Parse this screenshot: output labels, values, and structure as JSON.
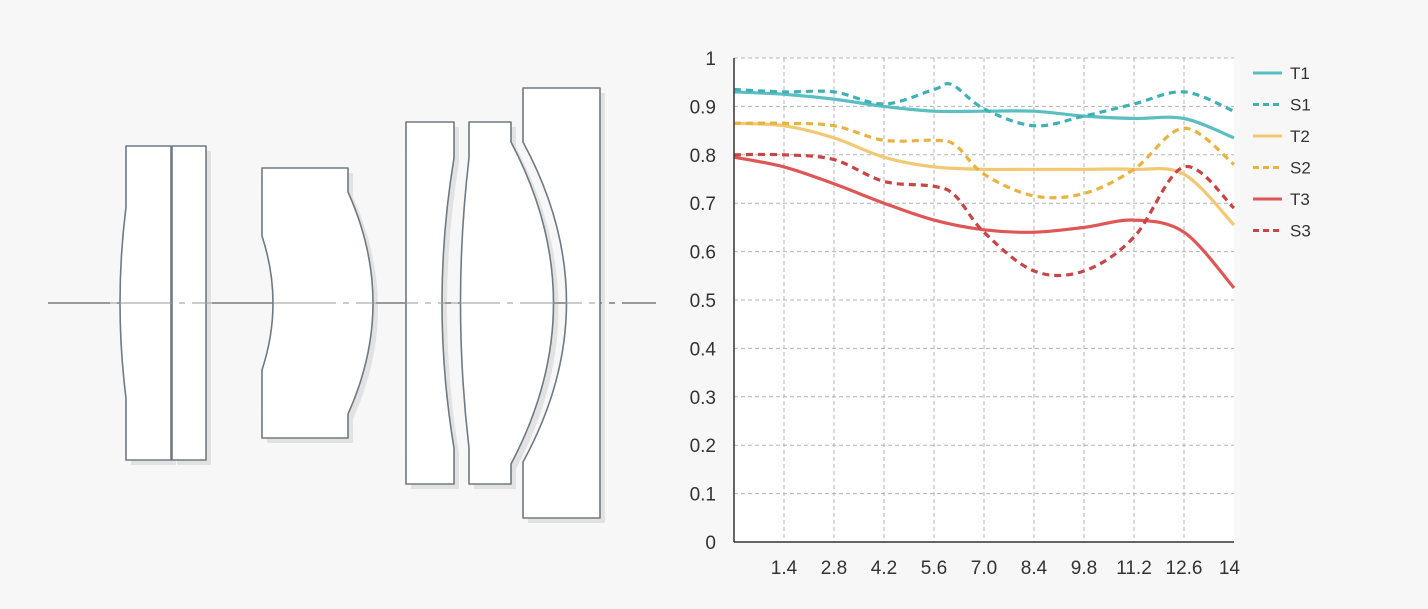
{
  "lens_diagram": {
    "elements": 7,
    "groups": 4
  },
  "chart_data": {
    "type": "line",
    "x_ticks": [
      "1.4",
      "2.8",
      "4.2",
      "5.6",
      "7.0",
      "8.4",
      "9.8",
      "11.2",
      "12.6",
      "14"
    ],
    "y_ticks": [
      "0",
      "0.1",
      "0.2",
      "0.3",
      "0.4",
      "0.5",
      "0.6",
      "0.7",
      "0.8",
      "0.9",
      "1"
    ],
    "xlim": [
      0,
      14
    ],
    "ylim": [
      0,
      1
    ],
    "grid": true,
    "legend_position": "right",
    "series": [
      {
        "name": "T1",
        "style": "solid",
        "color": "#5bbfc2",
        "x": [
          0,
          1.4,
          2.8,
          4.2,
          5.6,
          7.0,
          8.4,
          9.8,
          11.2,
          12.6,
          14
        ],
        "y": [
          0.93,
          0.925,
          0.915,
          0.9,
          0.89,
          0.89,
          0.89,
          0.88,
          0.875,
          0.875,
          0.835
        ]
      },
      {
        "name": "S1",
        "style": "dashed",
        "color": "#3fb0b4",
        "x": [
          0,
          1.4,
          2.8,
          4.2,
          5.6,
          6.1,
          7.0,
          8.4,
          9.8,
          11.2,
          12.6,
          14
        ],
        "y": [
          0.935,
          0.93,
          0.93,
          0.905,
          0.935,
          0.945,
          0.895,
          0.86,
          0.88,
          0.905,
          0.93,
          0.89
        ]
      },
      {
        "name": "T2",
        "style": "solid",
        "color": "#f2c872",
        "x": [
          0,
          1.4,
          2.8,
          4.2,
          5.6,
          7.0,
          8.4,
          9.8,
          11.2,
          12.6,
          14
        ],
        "y": [
          0.865,
          0.86,
          0.835,
          0.795,
          0.775,
          0.77,
          0.77,
          0.77,
          0.77,
          0.76,
          0.655
        ]
      },
      {
        "name": "S2",
        "style": "dashed",
        "color": "#e8b340",
        "x": [
          0,
          1.4,
          2.8,
          4.2,
          5.6,
          6.2,
          7.0,
          8.4,
          9.8,
          11.2,
          12.6,
          14
        ],
        "y": [
          0.865,
          0.865,
          0.86,
          0.83,
          0.83,
          0.82,
          0.76,
          0.715,
          0.72,
          0.77,
          0.855,
          0.78
        ]
      },
      {
        "name": "T3",
        "style": "solid",
        "color": "#df5656",
        "x": [
          0,
          1.4,
          2.8,
          4.2,
          5.6,
          7.0,
          8.4,
          9.8,
          11.2,
          12.6,
          14
        ],
        "y": [
          0.795,
          0.775,
          0.74,
          0.7,
          0.665,
          0.645,
          0.64,
          0.65,
          0.665,
          0.64,
          0.525
        ]
      },
      {
        "name": "S3",
        "style": "dashed",
        "color": "#c94444",
        "x": [
          0,
          1.4,
          2.8,
          4.2,
          5.6,
          6.2,
          7.0,
          8.4,
          9.8,
          11.2,
          12.6,
          14
        ],
        "y": [
          0.8,
          0.8,
          0.79,
          0.745,
          0.735,
          0.715,
          0.64,
          0.56,
          0.56,
          0.63,
          0.775,
          0.69
        ]
      }
    ]
  }
}
